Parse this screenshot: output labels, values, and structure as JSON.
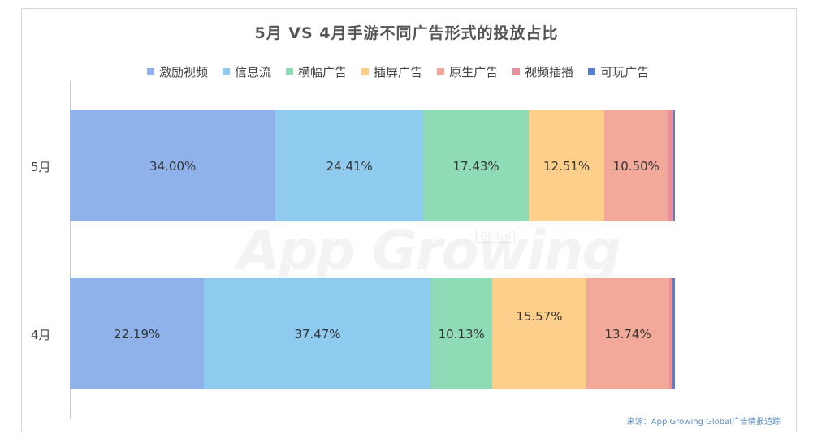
{
  "chart_data": {
    "type": "bar",
    "orientation": "horizontal",
    "stacked": "percent",
    "title": "5月 VS 4月手游不同广告形式的投放占比",
    "categories": [
      "5月",
      "4月"
    ],
    "series": [
      {
        "name": "激励视频",
        "color": "#8fb2ea",
        "values": [
          34.0,
          22.19
        ]
      },
      {
        "name": "信息流",
        "color": "#8ecbee",
        "values": [
          24.41,
          37.47
        ]
      },
      {
        "name": "横幅广告",
        "color": "#8fdbb6",
        "values": [
          17.43,
          10.13
        ]
      },
      {
        "name": "插屏广告",
        "color": "#fdcf8b",
        "values": [
          12.51,
          15.57
        ]
      },
      {
        "name": "原生广告",
        "color": "#f2a99a",
        "values": [
          10.5,
          13.74
        ]
      },
      {
        "name": "视频插播",
        "color": "#ea8f97",
        "values": [
          0.85,
          0.55
        ]
      },
      {
        "name": "可玩广告",
        "color": "#5b7fc8",
        "values": [
          0.3,
          0.35
        ]
      }
    ],
    "data_labels": [
      [
        "34.00%",
        "24.41%",
        "17.43%",
        "12.51%",
        "10.50%",
        "",
        ""
      ],
      [
        "22.19%",
        "37.47%",
        "10.13%",
        "15.57%",
        "13.74%",
        "",
        ""
      ]
    ],
    "legend_position": "top",
    "xlim": [
      0,
      100
    ],
    "grid": false
  },
  "watermark": {
    "text": "App Growing",
    "tag": "Global"
  },
  "source": "来源：App Growing Global广告情报追踪"
}
